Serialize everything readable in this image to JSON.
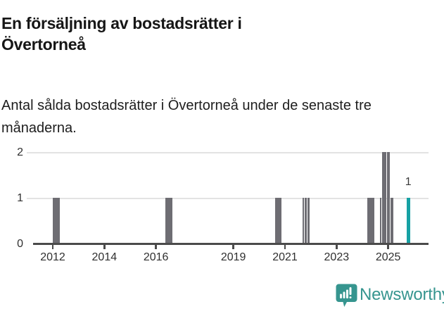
{
  "header": {
    "title": "En försäljning av bostadsrätter i Övertorneå",
    "subtitle": "Antal sålda bostadsrätter i Övertorneå under de senaste tre månaderna."
  },
  "chart_data": {
    "type": "bar",
    "title": "En försäljning av bostadsrätter i Övertorneå",
    "xlabel": "",
    "ylabel": "",
    "x_axis": {
      "min": 2011.236,
      "max": 2026.564,
      "ticks": [
        2012,
        2014,
        2016,
        2019,
        2021,
        2023,
        2025
      ]
    },
    "y_axis": {
      "min": 0,
      "max": 2,
      "ticks": [
        0,
        1,
        2
      ]
    },
    "grid": "horizontal",
    "legend": "none",
    "bars": [
      {
        "x_start": 2012.008,
        "x_end": 2012.281,
        "value": 1,
        "color": "default"
      },
      {
        "x_start": 2016.364,
        "x_end": 2016.636,
        "value": 1,
        "color": "default"
      },
      {
        "x_start": 2020.618,
        "x_end": 2020.864,
        "value": 1,
        "color": "default"
      },
      {
        "x_start": 2021.682,
        "x_end": 2021.75,
        "value": 1,
        "color": "default"
      },
      {
        "x_start": 2021.777,
        "x_end": 2021.845,
        "value": 1,
        "color": "default"
      },
      {
        "x_start": 2021.873,
        "x_end": 2021.955,
        "value": 1,
        "color": "default"
      },
      {
        "x_start": 2024.199,
        "x_end": 2024.472,
        "value": 1,
        "color": "default"
      },
      {
        "x_start": 2024.682,
        "x_end": 2024.75,
        "value": 1,
        "color": "default"
      },
      {
        "x_start": 2024.769,
        "x_end": 2024.84,
        "value": 2,
        "color": "default"
      },
      {
        "x_start": 2024.859,
        "x_end": 2024.927,
        "value": 2,
        "color": "default"
      },
      {
        "x_start": 2024.955,
        "x_end": 2025.075,
        "value": 2,
        "color": "default"
      },
      {
        "x_start": 2025.078,
        "x_end": 2025.2,
        "value": 1,
        "color": "default"
      },
      {
        "x_start": 2025.71,
        "x_end": 2025.85,
        "value": 1,
        "color": "highlight"
      }
    ],
    "bar_label": {
      "text": "1",
      "x": 2025.78,
      "value": 1
    },
    "colors": {
      "bar_default": "#6e6d73",
      "bar_highlight": "#16a1a4",
      "gridline": "#e3e3e3",
      "axis": "#4b4b4b",
      "tick_label": "#2f2f2f",
      "value_label": "#393939"
    }
  },
  "footer": {
    "brand": "Newsworthy",
    "brand_color": "#36958f",
    "logo_icon": "bar-chart-speech-bubble"
  }
}
